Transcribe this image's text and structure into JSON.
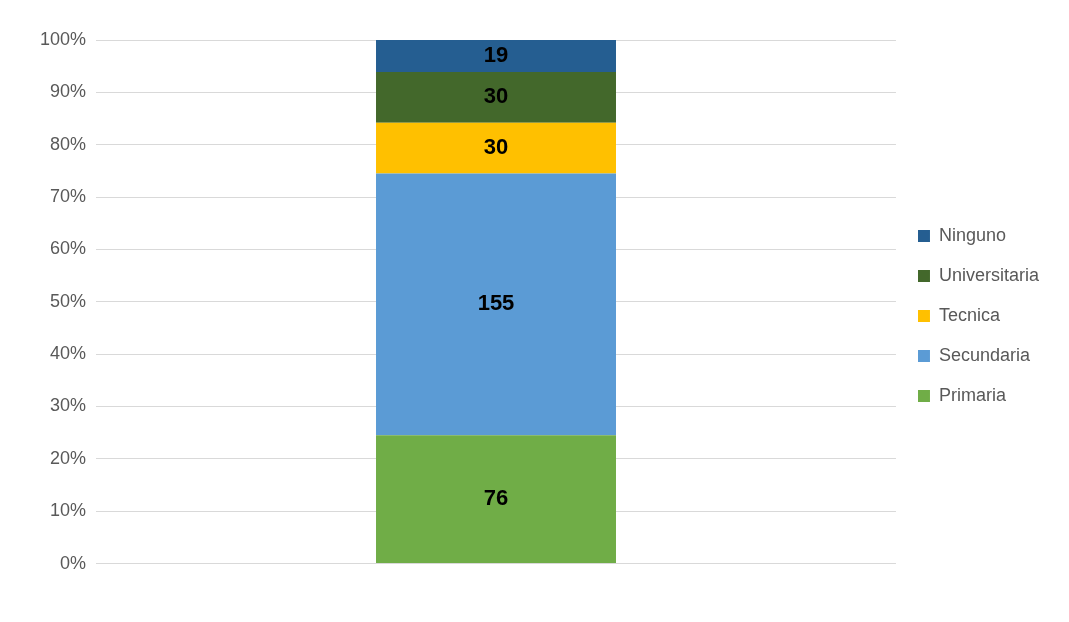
{
  "chart_data": {
    "type": "bar",
    "stacked": true,
    "categories": [
      null
    ],
    "series": [
      {
        "name": "Primaria",
        "color": "#70ad47",
        "values": [
          24.5
        ]
      },
      {
        "name": "Secundaria",
        "color": "#5b9bd5",
        "values": [
          50.0
        ]
      },
      {
        "name": "Tecnica",
        "color": "#ffc000",
        "values": [
          9.7
        ]
      },
      {
        "name": "Universitaria",
        "color": "#43682b",
        "values": [
          9.7
        ]
      },
      {
        "name": "Ninguno",
        "color": "#255e91",
        "values": [
          6.1
        ]
      }
    ],
    "annotations": [
      "76",
      "155",
      "30",
      "30",
      "19"
    ],
    "ylim": [
      0,
      100
    ],
    "yticks": [
      {
        "value": 0,
        "label": "0%"
      },
      {
        "value": 10,
        "label": "10%"
      },
      {
        "value": 20,
        "label": "20%"
      },
      {
        "value": 30,
        "label": "30%"
      },
      {
        "value": 40,
        "label": "40%"
      },
      {
        "value": 50,
        "label": "50%"
      },
      {
        "value": 60,
        "label": "60%"
      },
      {
        "value": 70,
        "label": "70%"
      },
      {
        "value": 80,
        "label": "80%"
      },
      {
        "value": 90,
        "label": "90%"
      },
      {
        "value": 100,
        "label": "100%"
      }
    ],
    "grid": "y",
    "legend": "right"
  }
}
